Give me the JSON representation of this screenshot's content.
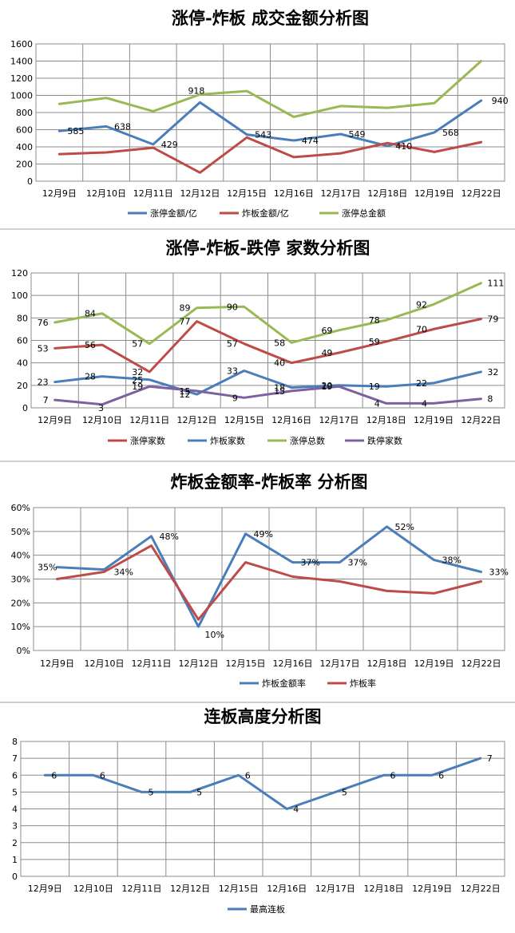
{
  "chart_data": [
    {
      "type": "line",
      "title": "涨停-炸板 成交金额分析图",
      "categories": [
        "12月9日",
        "12月10日",
        "12月11日",
        "12月12日",
        "12月15日",
        "12月16日",
        "12月17日",
        "12月18日",
        "12月19日",
        "12月22日"
      ],
      "y_ticks": [
        "0",
        "200",
        "400",
        "600",
        "800",
        "1000",
        "1200",
        "1400",
        "1600"
      ],
      "ylim": [
        0,
        1600
      ],
      "grid": true,
      "legend": "bottom",
      "series": [
        {
          "name": "涨停金额/亿",
          "color": "#4a7ebb",
          "values": [
            585,
            638,
            429,
            918,
            543,
            474,
            549,
            410,
            568,
            940
          ],
          "labels": [
            "585",
            "638",
            "429",
            "918",
            "543",
            "474",
            "549",
            "410",
            "568",
            "940"
          ]
        },
        {
          "name": "炸板金额/亿",
          "color": "#be4b48",
          "values": [
            315,
            335,
            390,
            100,
            510,
            280,
            325,
            445,
            340,
            455
          ]
        },
        {
          "name": "涨停总金额",
          "color": "#98b954",
          "values": [
            900,
            970,
            815,
            1010,
            1050,
            750,
            875,
            855,
            910,
            1400
          ]
        }
      ]
    },
    {
      "type": "line",
      "title": "涨停-炸板-跌停 家数分析图",
      "categories": [
        "12月9日",
        "12月10日",
        "12月11日",
        "12月12日",
        "12月15日",
        "12月16日",
        "12月17日",
        "12月18日",
        "12月19日",
        "12月22日"
      ],
      "y_ticks": [
        "0",
        "20",
        "40",
        "60",
        "80",
        "100",
        "120"
      ],
      "ylim": [
        0,
        120
      ],
      "grid": true,
      "legend": "bottom",
      "series": [
        {
          "name": "涨停家数",
          "color": "#be4b48",
          "values": [
            53,
            56,
            32,
            77,
            57,
            40,
            49,
            59,
            70,
            79
          ],
          "labels": [
            "53",
            "56",
            "32",
            "77",
            "57",
            "40",
            "49",
            "59",
            "70",
            "79"
          ]
        },
        {
          "name": "炸板家数",
          "color": "#4a7ebb",
          "values": [
            23,
            28,
            25,
            12,
            33,
            18,
            20,
            19,
            22,
            32
          ],
          "labels": [
            "23",
            "28",
            "25",
            "12",
            "33",
            "18",
            "20",
            "19",
            "22",
            "32"
          ]
        },
        {
          "name": "涨停总数",
          "color": "#98b954",
          "values": [
            76,
            84,
            57,
            89,
            90,
            58,
            69,
            78,
            92,
            111
          ],
          "labels": [
            "76",
            "84",
            "57",
            "89",
            "90",
            "58",
            "69",
            "78",
            "92",
            "111"
          ]
        },
        {
          "name": "跌停家数",
          "color": "#7d60a0",
          "values": [
            7,
            3,
            19,
            15,
            9,
            15,
            19,
            4,
            4,
            8
          ],
          "labels": [
            "7",
            "3",
            "19",
            "15",
            "9",
            "15",
            "19",
            "4",
            "4",
            "8"
          ]
        }
      ]
    },
    {
      "type": "line",
      "title": "炸板金额率-炸板率 分析图",
      "categories": [
        "12月9日",
        "12月10日",
        "12月11日",
        "12月12日",
        "12月15日",
        "12月16日",
        "12月17日",
        "12月18日",
        "12月19日",
        "12月22日"
      ],
      "y_ticks": [
        "0%",
        "10%",
        "20%",
        "30%",
        "40%",
        "50%",
        "60%"
      ],
      "ylim": [
        0,
        60
      ],
      "grid": true,
      "legend": "bottom",
      "series": [
        {
          "name": "炸板金额率",
          "color": "#4a7ebb",
          "values": [
            35,
            34,
            48,
            10,
            49,
            37,
            37,
            52,
            38,
            33
          ],
          "labels": [
            "35%",
            "34%",
            "48%",
            "10%",
            "49%",
            "37%",
            "37%",
            "52%",
            "38%",
            "33%"
          ]
        },
        {
          "name": "炸板率",
          "color": "#be4b48",
          "values": [
            30,
            33,
            44,
            13,
            37,
            31,
            29,
            25,
            24,
            29
          ]
        }
      ]
    },
    {
      "type": "line",
      "title": "连板高度分析图",
      "categories": [
        "12月9日",
        "12月10日",
        "12月11日",
        "12月12日",
        "12月15日",
        "12月16日",
        "12月17日",
        "12月18日",
        "12月19日",
        "12月22日"
      ],
      "y_ticks": [
        "0",
        "1",
        "2",
        "3",
        "4",
        "5",
        "6",
        "7",
        "8"
      ],
      "ylim": [
        0,
        8
      ],
      "grid": true,
      "legend": "bottom",
      "series": [
        {
          "name": "最高连板",
          "color": "#4a7ebb",
          "values": [
            6,
            6,
            5,
            5,
            6,
            4,
            5,
            6,
            6,
            7
          ],
          "labels": [
            "6",
            "6",
            "5",
            "5",
            "6",
            "4",
            "5",
            "6",
            "6",
            "7"
          ]
        }
      ]
    }
  ]
}
